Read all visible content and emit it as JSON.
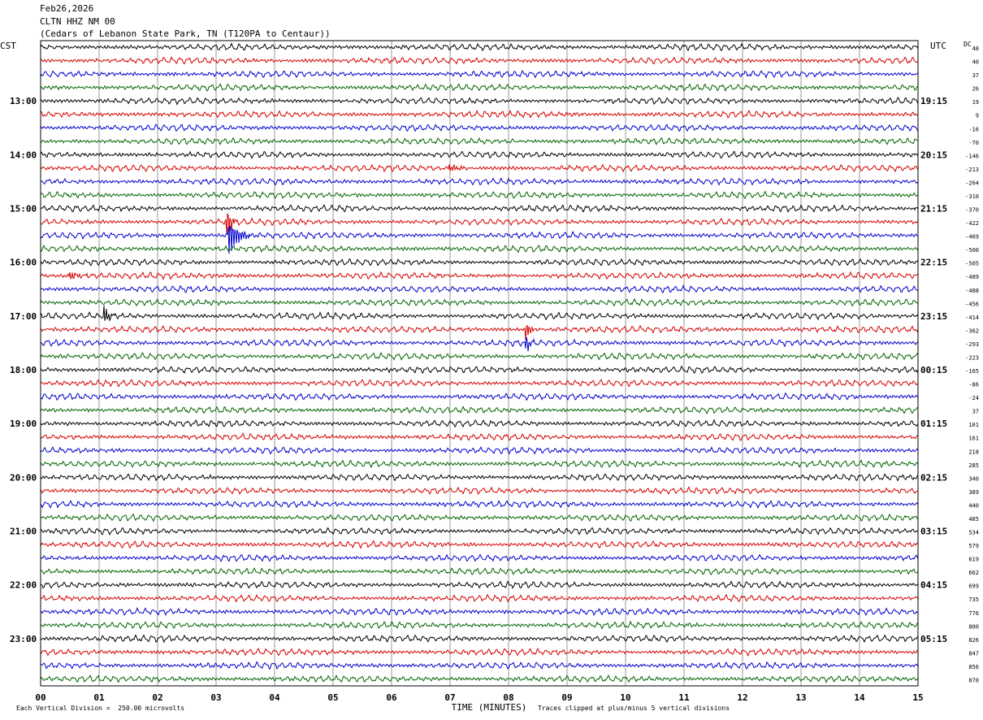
{
  "header": {
    "date": "Feb26,2026",
    "station": "CLTN HHZ NM 00",
    "location": "(Cedars of Lebanon State Park, TN (T120PA to Centaur))"
  },
  "axes": {
    "left_zone": "CST",
    "right_zone": "UTC",
    "dc_label": "DC",
    "xlabel": "TIME (MINUTES)"
  },
  "footer": {
    "scale_note": "Each Vertical Division =  250.00 microvolts",
    "clip_note": "Traces clipped at plus/minus 5 vertical divisions"
  },
  "colors": {
    "trace_cycle": [
      "#000000",
      "#d40000",
      "#0000cc",
      "#006400"
    ]
  },
  "chart_data": {
    "type": "line",
    "title": "Feb26,2026",
    "xlabel": "TIME (MINUTES)",
    "ylabel": "",
    "x_range": [
      0,
      15
    ],
    "x_ticks": [
      "00",
      "01",
      "02",
      "03",
      "04",
      "05",
      "06",
      "07",
      "08",
      "09",
      "10",
      "11",
      "12",
      "13",
      "14",
      "15"
    ],
    "grid": true,
    "rows": 48,
    "minutes_per_row": 15,
    "left_hour_labels": [
      "13:00",
      "14:00",
      "15:00",
      "16:00",
      "17:00",
      "18:00",
      "19:00",
      "20:00",
      "21:00",
      "22:00",
      "23:00"
    ],
    "right_hour_labels": [
      "19:15",
      "20:15",
      "21:15",
      "22:15",
      "23:15",
      "00:15",
      "01:15",
      "02:15",
      "03:15",
      "04:15",
      "05:15"
    ],
    "dc_offsets": [
      48,
      40,
      37,
      26,
      19,
      9,
      -16,
      -70,
      -146,
      -213,
      -264,
      -310,
      -370,
      -422,
      -469,
      -500,
      -505,
      -489,
      -488,
      -456,
      -414,
      -362,
      -293,
      -223,
      -165,
      -86,
      -24,
      37,
      101,
      161,
      218,
      285,
      340,
      389,
      440,
      485,
      534,
      579,
      619,
      662,
      699,
      735,
      776,
      800,
      826,
      847,
      856,
      870
    ],
    "events": [
      {
        "row": 9,
        "minute": 7.0,
        "amplitude": 0.5,
        "duration": 0.3
      },
      {
        "row": 13,
        "minute": 3.2,
        "amplitude": 1.8,
        "duration": 0.15
      },
      {
        "row": 14,
        "minute": 3.22,
        "amplitude": 2.6,
        "duration": 0.35
      },
      {
        "row": 17,
        "minute": 0.5,
        "amplitude": 0.5,
        "duration": 0.4
      },
      {
        "row": 20,
        "minute": 1.1,
        "amplitude": 1.3,
        "duration": 0.15
      },
      {
        "row": 21,
        "minute": 8.3,
        "amplitude": 1.4,
        "duration": 0.15
      },
      {
        "row": 22,
        "minute": 8.3,
        "amplitude": 1.2,
        "duration": 0.15
      }
    ]
  }
}
